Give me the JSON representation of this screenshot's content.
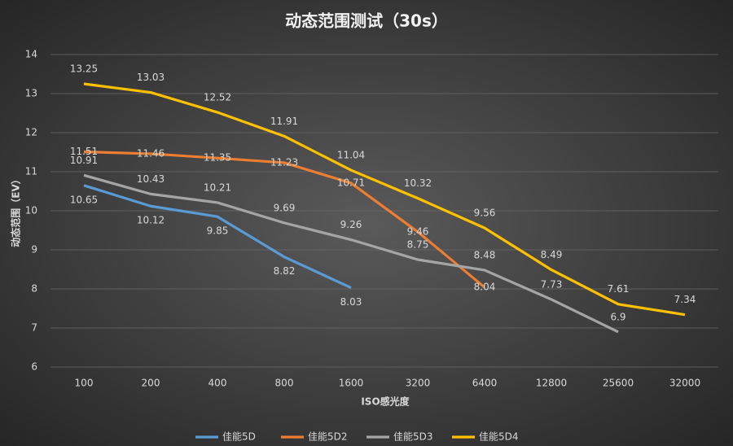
{
  "chart_data": {
    "type": "line",
    "title": "动态范围测试（30s）",
    "x_label": "ISO感光度",
    "y_label": "动态范围（EV）",
    "categories": [
      "100",
      "200",
      "400",
      "800",
      "1600",
      "3200",
      "6400",
      "12800",
      "25600",
      "32000"
    ],
    "series": [
      {
        "name": "佳能5D",
        "color": "#5b9bd5",
        "values": [
          10.65,
          10.12,
          9.85,
          8.82,
          8.03,
          null,
          null,
          null,
          null,
          null
        ]
      },
      {
        "name": "佳能5D2",
        "color": "#ed7d31",
        "values": [
          11.51,
          11.46,
          11.35,
          11.23,
          10.71,
          9.46,
          8.04,
          null,
          null,
          null
        ]
      },
      {
        "name": "佳能5D3",
        "color": "#a5a5a5",
        "values": [
          10.91,
          10.43,
          10.21,
          9.69,
          9.26,
          8.75,
          8.48,
          7.73,
          6.9,
          null
        ]
      },
      {
        "name": "佳能5D4",
        "color": "#ffc000",
        "values": [
          13.25,
          13.03,
          12.52,
          11.91,
          11.04,
          10.32,
          9.56,
          8.49,
          7.61,
          7.34
        ]
      }
    ],
    "ylim": [
      6,
      14
    ],
    "yticks": [
      6,
      7,
      8,
      9,
      10,
      11,
      12,
      13,
      14
    ],
    "grid": true,
    "legend": "bottom"
  }
}
